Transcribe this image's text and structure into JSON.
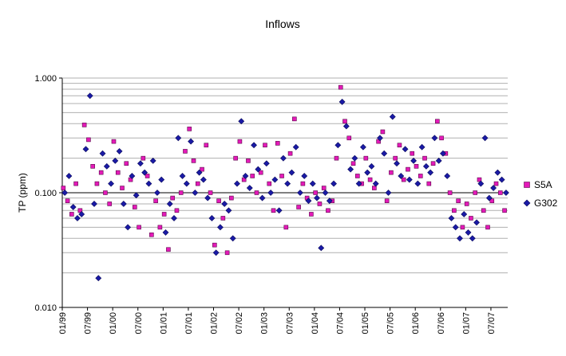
{
  "chart_data": {
    "type": "scatter",
    "title": "Inflows",
    "xlabel": "",
    "ylabel": "TP (ppm)",
    "yscale": "log",
    "ylim": [
      0.01,
      1.0
    ],
    "y_ticks": [
      "1.000",
      "0.100",
      "0.010"
    ],
    "x_range": [
      "1999-01",
      "2007-11"
    ],
    "x_ticks": [
      "01/99",
      "07/99",
      "01/00",
      "07/00",
      "01/01",
      "07/01",
      "01/02",
      "07/02",
      "01/03",
      "07/03",
      "01/04",
      "07/04",
      "01/05",
      "07/05",
      "01/06",
      "07/06",
      "01/07",
      "07/07"
    ],
    "grid": {
      "horizontal_minor": true,
      "horizontal_major_at_0_1": true
    },
    "legend_position": "right",
    "series": [
      {
        "name": "S5A",
        "marker": "square",
        "color": "#e41ab8",
        "points": [
          [
            "1999-01",
            0.11
          ],
          [
            "1999-02",
            0.085
          ],
          [
            "1999-03",
            0.065
          ],
          [
            "1999-04",
            0.12
          ],
          [
            "1999-05",
            0.07
          ],
          [
            "1999-06",
            0.39
          ],
          [
            "1999-07",
            0.29
          ],
          [
            "1999-08",
            0.17
          ],
          [
            "1999-09",
            0.12
          ],
          [
            "1999-10",
            0.15
          ],
          [
            "1999-11",
            0.1
          ],
          [
            "1999-12",
            0.08
          ],
          [
            "2000-01",
            0.28
          ],
          [
            "2000-02",
            0.15
          ],
          [
            "2000-03",
            0.11
          ],
          [
            "2000-04",
            0.18
          ],
          [
            "2000-05",
            0.13
          ],
          [
            "2000-06",
            0.075
          ],
          [
            "2000-07",
            0.05
          ],
          [
            "2000-08",
            0.2
          ],
          [
            "2000-09",
            0.14
          ],
          [
            "2000-10",
            0.043
          ],
          [
            "2000-11",
            0.085
          ],
          [
            "2000-12",
            0.05
          ],
          [
            "2001-01",
            0.065
          ],
          [
            "2001-02",
            0.032
          ],
          [
            "2001-03",
            0.09
          ],
          [
            "2001-04",
            0.07
          ],
          [
            "2001-05",
            0.1
          ],
          [
            "2001-06",
            0.23
          ],
          [
            "2001-07",
            0.36
          ],
          [
            "2001-08",
            0.19
          ],
          [
            "2001-09",
            0.12
          ],
          [
            "2001-10",
            0.16
          ],
          [
            "2001-11",
            0.26
          ],
          [
            "2001-12",
            0.1
          ],
          [
            "2002-01",
            0.035
          ],
          [
            "2002-02",
            0.085
          ],
          [
            "2002-03",
            0.06
          ],
          [
            "2002-04",
            0.03
          ],
          [
            "2002-05",
            0.09
          ],
          [
            "2002-06",
            0.2
          ],
          [
            "2002-07",
            0.28
          ],
          [
            "2002-08",
            0.13
          ],
          [
            "2002-09",
            0.19
          ],
          [
            "2002-10",
            0.14
          ],
          [
            "2002-11",
            0.1
          ],
          [
            "2002-12",
            0.15
          ],
          [
            "2003-01",
            0.26
          ],
          [
            "2003-02",
            0.12
          ],
          [
            "2003-03",
            0.07
          ],
          [
            "2003-04",
            0.27
          ],
          [
            "2003-05",
            0.14
          ],
          [
            "2003-06",
            0.05
          ],
          [
            "2003-07",
            0.22
          ],
          [
            "2003-08",
            0.44
          ],
          [
            "2003-09",
            0.075
          ],
          [
            "2003-10",
            0.12
          ],
          [
            "2003-11",
            0.09
          ],
          [
            "2003-12",
            0.065
          ],
          [
            "2004-01",
            0.1
          ],
          [
            "2004-02",
            0.08
          ],
          [
            "2004-03",
            0.11
          ],
          [
            "2004-04",
            0.07
          ],
          [
            "2004-05",
            0.085
          ],
          [
            "2004-06",
            0.2
          ],
          [
            "2004-07",
            0.83
          ],
          [
            "2004-08",
            0.42
          ],
          [
            "2004-09",
            0.3
          ],
          [
            "2004-10",
            0.18
          ],
          [
            "2004-11",
            0.14
          ],
          [
            "2004-12",
            0.12
          ],
          [
            "2005-01",
            0.2
          ],
          [
            "2005-02",
            0.13
          ],
          [
            "2005-03",
            0.11
          ],
          [
            "2005-04",
            0.28
          ],
          [
            "2005-05",
            0.34
          ],
          [
            "2005-06",
            0.085
          ],
          [
            "2005-07",
            0.15
          ],
          [
            "2005-08",
            0.2
          ],
          [
            "2005-09",
            0.26
          ],
          [
            "2005-10",
            0.13
          ],
          [
            "2005-11",
            0.16
          ],
          [
            "2005-12",
            0.22
          ],
          [
            "2006-01",
            0.17
          ],
          [
            "2006-02",
            0.14
          ],
          [
            "2006-03",
            0.2
          ],
          [
            "2006-04",
            0.12
          ],
          [
            "2006-05",
            0.18
          ],
          [
            "2006-06",
            0.42
          ],
          [
            "2006-07",
            0.3
          ],
          [
            "2006-08",
            0.22
          ],
          [
            "2006-09",
            0.1
          ],
          [
            "2006-10",
            0.07
          ],
          [
            "2006-11",
            0.085
          ],
          [
            "2006-12",
            0.05
          ],
          [
            "2007-01",
            0.08
          ],
          [
            "2007-02",
            0.06
          ],
          [
            "2007-03",
            0.1
          ],
          [
            "2007-04",
            0.13
          ],
          [
            "2007-05",
            0.07
          ],
          [
            "2007-06",
            0.05
          ],
          [
            "2007-07",
            0.085
          ],
          [
            "2007-08",
            0.12
          ],
          [
            "2007-09",
            0.1
          ],
          [
            "2007-10",
            0.07
          ]
        ]
      },
      {
        "name": "G302",
        "marker": "diamond",
        "color": "#1a1aa6",
        "points": [
          [
            "1999-01",
            0.1
          ],
          [
            "1999-02",
            0.14
          ],
          [
            "1999-03",
            0.075
          ],
          [
            "1999-04",
            0.06
          ],
          [
            "1999-05",
            0.065
          ],
          [
            "1999-06",
            0.24
          ],
          [
            "1999-07",
            0.7
          ],
          [
            "1999-08",
            0.08
          ],
          [
            "1999-09",
            0.018
          ],
          [
            "1999-10",
            0.22
          ],
          [
            "1999-11",
            0.17
          ],
          [
            "1999-12",
            0.12
          ],
          [
            "2000-01",
            0.19
          ],
          [
            "2000-02",
            0.23
          ],
          [
            "2000-03",
            0.08
          ],
          [
            "2000-04",
            0.05
          ],
          [
            "2000-05",
            0.14
          ],
          [
            "2000-06",
            0.095
          ],
          [
            "2000-07",
            0.18
          ],
          [
            "2000-08",
            0.15
          ],
          [
            "2000-09",
            0.12
          ],
          [
            "2000-10",
            0.19
          ],
          [
            "2000-11",
            0.1
          ],
          [
            "2000-12",
            0.13
          ],
          [
            "2001-01",
            0.045
          ],
          [
            "2001-02",
            0.08
          ],
          [
            "2001-03",
            0.06
          ],
          [
            "2001-04",
            0.3
          ],
          [
            "2001-05",
            0.14
          ],
          [
            "2001-06",
            0.12
          ],
          [
            "2001-07",
            0.28
          ],
          [
            "2001-08",
            0.1
          ],
          [
            "2001-09",
            0.15
          ],
          [
            "2001-10",
            0.13
          ],
          [
            "2001-11",
            0.09
          ],
          [
            "2001-12",
            0.06
          ],
          [
            "2002-01",
            0.03
          ],
          [
            "2002-02",
            0.05
          ],
          [
            "2002-03",
            0.08
          ],
          [
            "2002-04",
            0.07
          ],
          [
            "2002-05",
            0.04
          ],
          [
            "2002-06",
            0.12
          ],
          [
            "2002-07",
            0.42
          ],
          [
            "2002-08",
            0.14
          ],
          [
            "2002-09",
            0.11
          ],
          [
            "2002-10",
            0.26
          ],
          [
            "2002-11",
            0.16
          ],
          [
            "2002-12",
            0.09
          ],
          [
            "2003-01",
            0.18
          ],
          [
            "2003-02",
            0.1
          ],
          [
            "2003-03",
            0.13
          ],
          [
            "2003-04",
            0.07
          ],
          [
            "2003-05",
            0.2
          ],
          [
            "2003-06",
            0.12
          ],
          [
            "2003-07",
            0.15
          ],
          [
            "2003-08",
            0.25
          ],
          [
            "2003-09",
            0.1
          ],
          [
            "2003-10",
            0.14
          ],
          [
            "2003-11",
            0.085
          ],
          [
            "2003-12",
            0.12
          ],
          [
            "2004-01",
            0.09
          ],
          [
            "2004-02",
            0.033
          ],
          [
            "2004-03",
            0.1
          ],
          [
            "2004-04",
            0.085
          ],
          [
            "2004-05",
            0.12
          ],
          [
            "2004-06",
            0.26
          ],
          [
            "2004-07",
            0.62
          ],
          [
            "2004-08",
            0.38
          ],
          [
            "2004-09",
            0.16
          ],
          [
            "2004-10",
            0.2
          ],
          [
            "2004-11",
            0.12
          ],
          [
            "2004-12",
            0.25
          ],
          [
            "2005-01",
            0.15
          ],
          [
            "2005-02",
            0.17
          ],
          [
            "2005-03",
            0.12
          ],
          [
            "2005-04",
            0.3
          ],
          [
            "2005-05",
            0.22
          ],
          [
            "2005-06",
            0.1
          ],
          [
            "2005-07",
            0.46
          ],
          [
            "2005-08",
            0.18
          ],
          [
            "2005-09",
            0.14
          ],
          [
            "2005-10",
            0.24
          ],
          [
            "2005-11",
            0.13
          ],
          [
            "2005-12",
            0.19
          ],
          [
            "2006-01",
            0.12
          ],
          [
            "2006-02",
            0.25
          ],
          [
            "2006-03",
            0.17
          ],
          [
            "2006-04",
            0.15
          ],
          [
            "2006-05",
            0.3
          ],
          [
            "2006-06",
            0.19
          ],
          [
            "2006-07",
            0.22
          ],
          [
            "2006-08",
            0.14
          ],
          [
            "2006-09",
            0.06
          ],
          [
            "2006-10",
            0.05
          ],
          [
            "2006-11",
            0.04
          ],
          [
            "2006-12",
            0.065
          ],
          [
            "2007-01",
            0.045
          ],
          [
            "2007-02",
            0.04
          ],
          [
            "2007-03",
            0.055
          ],
          [
            "2007-04",
            0.12
          ],
          [
            "2007-05",
            0.3
          ],
          [
            "2007-06",
            0.09
          ],
          [
            "2007-07",
            0.11
          ],
          [
            "2007-08",
            0.15
          ],
          [
            "2007-09",
            0.13
          ],
          [
            "2007-10",
            0.1
          ]
        ]
      }
    ]
  }
}
